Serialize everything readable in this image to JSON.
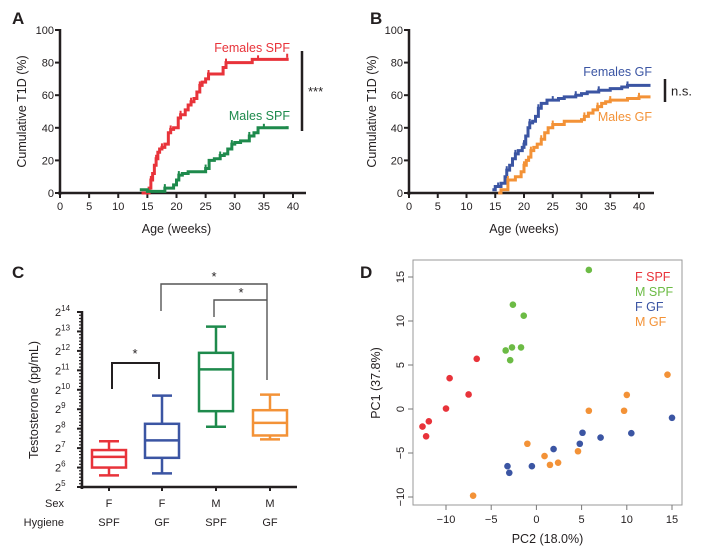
{
  "colors": {
    "female_spf": "#e8333a",
    "male_spf_survival": "#1e8a4c",
    "female_gf": "#3b55a3",
    "male_gf": "#f39237",
    "male_spf_pca": "#6cbb45",
    "axis": "#231f20"
  },
  "chart_data": [
    {
      "panel": "A",
      "type": "line",
      "step": true,
      "title": "",
      "xlabel": "Age (weeks)",
      "ylabel": "Cumulative T1D (%)",
      "xlim": [
        0,
        42
      ],
      "ylim": [
        0,
        100
      ],
      "xticks": [
        "0",
        "5",
        "10",
        "15",
        "20",
        "25",
        "30",
        "35",
        "40"
      ],
      "yticks": [
        "0",
        "20",
        "40",
        "60",
        "80",
        "100"
      ],
      "grid": false,
      "series": [
        {
          "name": "Females SPF",
          "color_key": "female_spf",
          "x": [
            14,
            15.3,
            15.6,
            15.9,
            16.2,
            16.5,
            16.8,
            17.1,
            17.5,
            18,
            18.6,
            19,
            19.5,
            20.3,
            20.7,
            21.5,
            22,
            22.5,
            23,
            23.5,
            24,
            24.4,
            25,
            25.5,
            26,
            28,
            28.5,
            29,
            33,
            34,
            35,
            37,
            39
          ],
          "y": [
            0,
            3,
            8,
            12,
            17,
            21,
            25,
            27,
            28,
            30,
            37,
            39,
            40,
            46,
            48,
            51,
            54,
            56,
            58,
            62,
            66,
            68,
            70,
            73,
            73,
            77,
            80,
            80,
            82,
            82,
            82,
            82,
            83
          ]
        },
        {
          "name": "Males SPF",
          "color_key": "male_spf_survival",
          "x": [
            13.7,
            15,
            18,
            19.5,
            20,
            20.4,
            21,
            22,
            25,
            25.6,
            26.5,
            27.5,
            28.2,
            28.8,
            29.5,
            30,
            31,
            32.5,
            33.3,
            34,
            35,
            39
          ],
          "y": [
            2,
            1,
            3,
            5,
            8,
            11,
            12,
            13,
            15,
            20,
            21,
            23,
            24,
            27,
            30,
            31,
            32,
            35,
            37,
            40,
            40,
            41
          ]
        }
      ],
      "annotations": [
        {
          "text": "Females SPF",
          "color_key": "female_spf"
        },
        {
          "text": "Males SPF",
          "color_key": "male_spf_survival"
        },
        {
          "text": "***",
          "type": "significance_bracket"
        }
      ]
    },
    {
      "panel": "B",
      "type": "line",
      "step": true,
      "title": "",
      "xlabel": "Age (weeks)",
      "ylabel": "Cumulative T1D (%)",
      "xlim": [
        0,
        42
      ],
      "ylim": [
        0,
        100
      ],
      "xticks": [
        "0",
        "5",
        "10",
        "15",
        "20",
        "25",
        "30",
        "35",
        "40"
      ],
      "yticks": [
        "0",
        "20",
        "40",
        "60",
        "80",
        "100"
      ],
      "grid": false,
      "series": [
        {
          "name": "Females GF",
          "color_key": "female_gf",
          "x": [
            14.5,
            15,
            15.5,
            16,
            16.7,
            17,
            17.5,
            18,
            18.5,
            19,
            19.7,
            20,
            20.3,
            20.7,
            21,
            21.5,
            22,
            22.5,
            23,
            24,
            25,
            26,
            27,
            29,
            30,
            31,
            33,
            35,
            37,
            38,
            40,
            42
          ],
          "y": [
            2,
            4,
            4,
            6,
            10,
            14,
            17,
            21,
            24,
            26,
            28,
            30,
            35,
            40,
            43,
            44,
            47,
            52,
            55,
            57,
            57,
            58,
            59,
            60,
            61,
            62,
            63,
            64,
            65,
            66,
            66,
            66
          ]
        },
        {
          "name": "Males GF",
          "color_key": "male_gf",
          "x": [
            15.5,
            16,
            17.2,
            18.5,
            19.5,
            20,
            20.4,
            20.8,
            21.2,
            21.7,
            22.3,
            23,
            23.6,
            24.2,
            25,
            27,
            30,
            30.5,
            31.2,
            32,
            32.8,
            33.5,
            34.2,
            35,
            36,
            38,
            40,
            41,
            42
          ],
          "y": [
            0,
            2,
            8,
            10,
            13,
            17,
            20,
            22,
            26,
            28,
            30,
            33,
            37,
            40,
            42,
            44,
            45,
            47,
            49,
            51,
            53,
            55,
            56,
            57,
            57,
            58,
            59,
            59,
            59
          ]
        }
      ],
      "annotations": [
        {
          "text": "Females GF",
          "color_key": "female_gf"
        },
        {
          "text": "Males GF",
          "color_key": "male_gf"
        },
        {
          "text": "n.s.",
          "type": "significance_bracket"
        }
      ]
    },
    {
      "panel": "C",
      "type": "box",
      "title": "",
      "xlabel": "",
      "ylabel": "Testosterone (pg/mL)",
      "yscale": "log2",
      "ylim_exponent": [
        5,
        14
      ],
      "yticks": [
        "5",
        "6",
        "7",
        "8",
        "9",
        "10",
        "11",
        "12",
        "13",
        "14"
      ],
      "ytick_base": "2",
      "row_labels": [
        "Sex",
        "Hygiene"
      ],
      "categories": [
        {
          "sex": "F",
          "hygiene": "SPF",
          "color_key": "female_spf"
        },
        {
          "sex": "F",
          "hygiene": "GF",
          "color_key": "female_gf"
        },
        {
          "sex": "M",
          "hygiene": "SPF",
          "color_key": "male_spf_survival"
        },
        {
          "sex": "M",
          "hygiene": "GF",
          "color_key": "male_gf"
        }
      ],
      "series": [
        {
          "name": "F SPF",
          "whisker_low": 5.6,
          "q1": 6.0,
          "median": 6.55,
          "q3": 6.9,
          "whisker_high": 7.35
        },
        {
          "name": "F GF",
          "whisker_low": 5.7,
          "q1": 6.5,
          "median": 7.4,
          "q3": 8.25,
          "whisker_high": 9.7
        },
        {
          "name": "M SPF",
          "whisker_low": 8.1,
          "q1": 8.9,
          "median": 11.05,
          "q3": 11.9,
          "whisker_high": 13.25
        },
        {
          "name": "M GF",
          "whisker_low": 7.45,
          "q1": 7.65,
          "median": 8.3,
          "q3": 8.95,
          "whisker_high": 9.75
        }
      ],
      "annotations": [
        {
          "text": "*",
          "between": [
            "F SPF",
            "F GF"
          ]
        },
        {
          "text": "*",
          "between": [
            "F GF",
            "M GF"
          ]
        },
        {
          "text": "*",
          "between": [
            "M SPF",
            "M GF"
          ]
        }
      ]
    },
    {
      "panel": "D",
      "type": "scatter",
      "title": "",
      "xlabel": "PC2 (18.0%)",
      "ylabel": "PC1 (37.8%)",
      "xlim": [
        -14,
        16
      ],
      "ylim": [
        -10.8,
        16.8
      ],
      "xticks": [
        "-10",
        "-5",
        "0",
        "5",
        "10",
        "15"
      ],
      "yticks": [
        "-10",
        "-5",
        "0",
        "5",
        "10",
        "15"
      ],
      "grid": false,
      "legend_position": "top-right",
      "series": [
        {
          "name": "F SPF",
          "color_key": "female_spf",
          "points": [
            [
              -12.6,
              -2.0
            ],
            [
              -12.2,
              -3.1
            ],
            [
              -11.9,
              -1.4
            ],
            [
              -10.0,
              0.05
            ],
            [
              -9.6,
              3.5
            ],
            [
              -7.5,
              1.65
            ],
            [
              -6.6,
              5.7
            ]
          ]
        },
        {
          "name": "M SPF",
          "color_key": "male_spf_pca",
          "points": [
            [
              -3.4,
              6.65
            ],
            [
              -2.9,
              5.55
            ],
            [
              -2.7,
              7.0
            ],
            [
              -2.6,
              11.85
            ],
            [
              -1.7,
              7.0
            ],
            [
              -1.4,
              10.6
            ],
            [
              5.8,
              15.8
            ]
          ]
        },
        {
          "name": "F GF",
          "color_key": "female_gf",
          "points": [
            [
              -3.2,
              -6.5
            ],
            [
              -3.0,
              -7.25
            ],
            [
              -0.5,
              -6.5
            ],
            [
              1.9,
              -4.55
            ],
            [
              4.8,
              -3.95
            ],
            [
              5.1,
              -2.7
            ],
            [
              7.1,
              -3.25
            ],
            [
              10.5,
              -2.75
            ],
            [
              15.0,
              -1.0
            ]
          ]
        },
        {
          "name": "M GF",
          "color_key": "male_gf",
          "points": [
            [
              -7.0,
              -9.85
            ],
            [
              -1.0,
              -3.95
            ],
            [
              0.9,
              -5.35
            ],
            [
              1.5,
              -6.35
            ],
            [
              2.4,
              -6.1
            ],
            [
              4.6,
              -4.8
            ],
            [
              5.8,
              -0.2
            ],
            [
              9.7,
              -0.2
            ],
            [
              10.0,
              1.6
            ],
            [
              14.5,
              3.9
            ]
          ]
        }
      ]
    }
  ],
  "panels": {
    "A": {
      "letter": "A"
    },
    "B": {
      "letter": "B"
    },
    "C": {
      "letter": "C"
    },
    "D": {
      "letter": "D"
    }
  }
}
